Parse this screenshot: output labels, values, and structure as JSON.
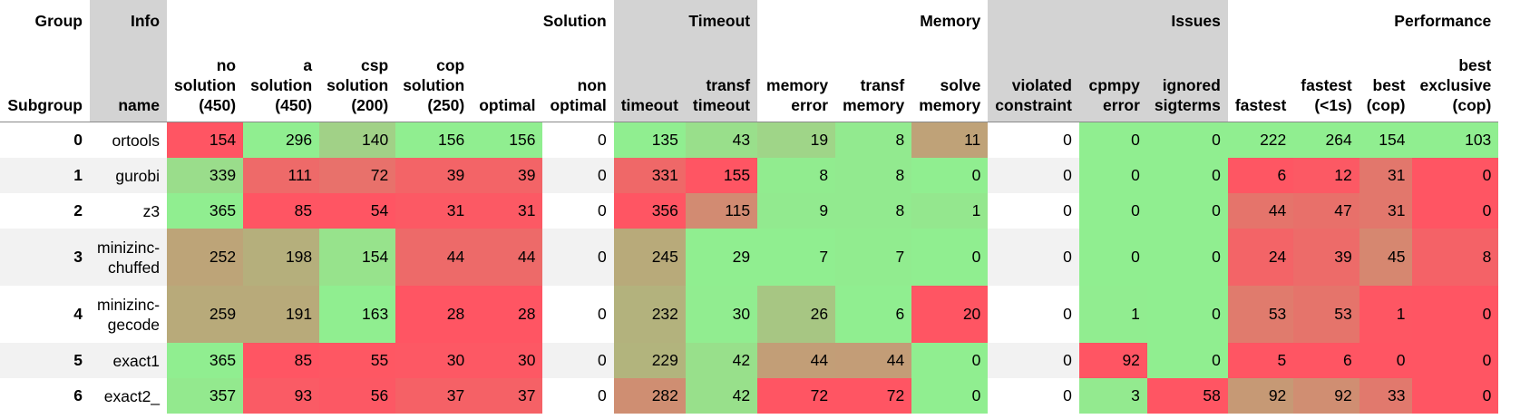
{
  "row_header_labels": {
    "group": "Group",
    "subgroup": "Subgroup"
  },
  "groups": [
    {
      "label": "Info",
      "span": 1,
      "shaded": true
    },
    {
      "label": "Solution",
      "span": 6,
      "shaded": false
    },
    {
      "label": "Timeout",
      "span": 2,
      "shaded": true
    },
    {
      "label": "Memory",
      "span": 3,
      "shaded": false
    },
    {
      "label": "Issues",
      "span": 3,
      "shaded": true
    },
    {
      "label": "Performance",
      "span": 4,
      "shaded": false
    }
  ],
  "columns": [
    {
      "label": "name",
      "group": "Info"
    },
    {
      "label": "no\nsolution\n(450)",
      "group": "Solution"
    },
    {
      "label": "a\nsolution\n(450)",
      "group": "Solution"
    },
    {
      "label": "csp\nsolution\n(200)",
      "group": "Solution"
    },
    {
      "label": "cop\nsolution\n(250)",
      "group": "Solution"
    },
    {
      "label": "optimal",
      "group": "Solution"
    },
    {
      "label": "non\noptimal",
      "group": "Solution"
    },
    {
      "label": "timeout",
      "group": "Timeout"
    },
    {
      "label": "transf\ntimeout",
      "group": "Timeout"
    },
    {
      "label": "memory\nerror",
      "group": "Memory"
    },
    {
      "label": "transf\nmemory",
      "group": "Memory"
    },
    {
      "label": "solve\nmemory",
      "group": "Memory"
    },
    {
      "label": "violated\nconstraint",
      "group": "Issues"
    },
    {
      "label": "cpmpy\nerror",
      "group": "Issues"
    },
    {
      "label": "ignored\nsigterms",
      "group": "Issues"
    },
    {
      "label": "fastest",
      "group": "Performance"
    },
    {
      "label": "fastest\n(<1s)",
      "group": "Performance"
    },
    {
      "label": "best\n(cop)",
      "group": "Performance"
    },
    {
      "label": "best\nexclusive\n(cop)",
      "group": "Performance"
    }
  ],
  "rows": [
    {
      "index": "0",
      "name": "ortools",
      "values": [
        154,
        296,
        140,
        156,
        156,
        0,
        135,
        43,
        19,
        8,
        11,
        0,
        0,
        0,
        222,
        264,
        154,
        103
      ]
    },
    {
      "index": "1",
      "name": "gurobi",
      "values": [
        339,
        111,
        72,
        39,
        39,
        0,
        331,
        155,
        8,
        8,
        0,
        0,
        0,
        0,
        6,
        12,
        31,
        0
      ]
    },
    {
      "index": "2",
      "name": "z3",
      "values": [
        365,
        85,
        54,
        31,
        31,
        0,
        356,
        115,
        9,
        8,
        1,
        0,
        0,
        0,
        44,
        47,
        31,
        0
      ]
    },
    {
      "index": "3",
      "name": "minizinc-\nchuffed",
      "values": [
        252,
        198,
        154,
        44,
        44,
        0,
        245,
        29,
        7,
        7,
        0,
        0,
        0,
        0,
        24,
        39,
        45,
        8
      ]
    },
    {
      "index": "4",
      "name": "minizinc-\ngecode",
      "values": [
        259,
        191,
        163,
        28,
        28,
        0,
        232,
        30,
        26,
        6,
        20,
        0,
        1,
        0,
        53,
        53,
        1,
        0
      ]
    },
    {
      "index": "5",
      "name": "exact1",
      "values": [
        365,
        85,
        55,
        30,
        30,
        0,
        229,
        42,
        44,
        44,
        0,
        0,
        92,
        0,
        5,
        6,
        0,
        0
      ]
    },
    {
      "index": "6",
      "name": "exact2_",
      "values": [
        357,
        93,
        56,
        37,
        37,
        0,
        282,
        42,
        72,
        72,
        0,
        0,
        3,
        58,
        92,
        92,
        33,
        0
      ]
    }
  ],
  "colors": {
    "good": "#90ee90",
    "bad": "#ff5563",
    "header_shade": "#d3d3d3",
    "stripe": "#f2f2f2",
    "rule": "#8a8a8a"
  },
  "gradients": {
    "higher_is_better": [
      true,
      true,
      true,
      true,
      true,
      null,
      false,
      false,
      false,
      false,
      false,
      null,
      false,
      false,
      true,
      true,
      true,
      true
    ]
  }
}
